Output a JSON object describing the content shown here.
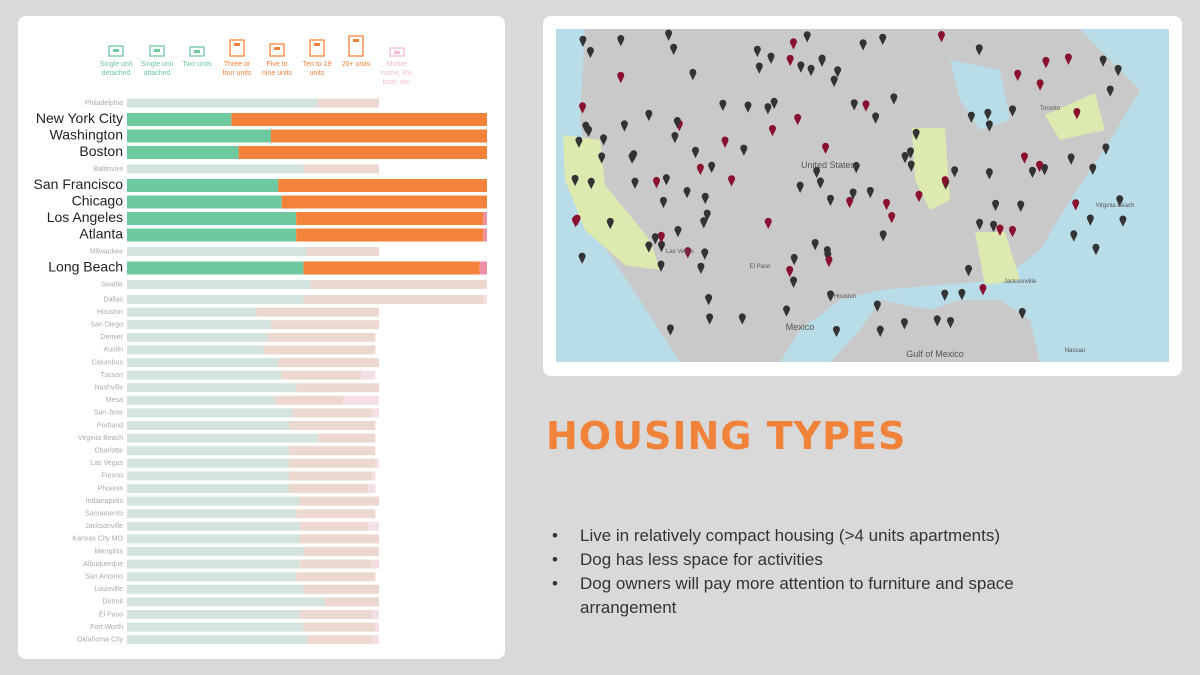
{
  "legend": [
    {
      "lines": [
        "Single unit",
        "detached"
      ],
      "group": "green"
    },
    {
      "lines": [
        "Single unit",
        "attached"
      ],
      "group": "green"
    },
    {
      "lines": [
        "Two units"
      ],
      "group": "green"
    },
    {
      "lines": [
        "Three or",
        "four units"
      ],
      "group": "orange"
    },
    {
      "lines": [
        "Five to",
        "nine units"
      ],
      "group": "orange"
    },
    {
      "lines": [
        "Ten to 19",
        "units"
      ],
      "group": "orange"
    },
    {
      "lines": [
        "20+ units"
      ],
      "group": "orange"
    },
    {
      "lines": [
        "Mobile",
        "home, RV,",
        "boat, etc."
      ],
      "group": "pink"
    }
  ],
  "colors": {
    "green": "#6fc9a0",
    "orange": "#f5823a",
    "pink": "#f08fa8",
    "green_faded": "#d3e3dd",
    "orange_faded": "#ecd8cf",
    "pink_faded": "#f4dfe5"
  },
  "cities": [
    {
      "name": "Philadelphia",
      "highlighted": false,
      "values": [
        53,
        17,
        0
      ]
    },
    {
      "name": "New York City",
      "highlighted": true,
      "values": [
        29,
        71,
        0
      ]
    },
    {
      "name": "Washington",
      "highlighted": true,
      "values": [
        40,
        60,
        0
      ]
    },
    {
      "name": "Boston",
      "highlighted": true,
      "values": [
        31,
        69,
        0
      ]
    },
    {
      "name": "Baltimore",
      "highlighted": false,
      "values": [
        49,
        21,
        0
      ]
    },
    {
      "name": "San Francisco",
      "highlighted": true,
      "values": [
        42,
        58,
        0
      ]
    },
    {
      "name": "Chicago",
      "highlighted": true,
      "values": [
        43,
        57,
        0
      ]
    },
    {
      "name": "Los Angeles",
      "highlighted": true,
      "values": [
        47,
        52,
        1
      ]
    },
    {
      "name": "Atlanta",
      "highlighted": true,
      "values": [
        47,
        52,
        1
      ]
    },
    {
      "name": "Milwaukee",
      "highlighted": false,
      "values": [
        50,
        20,
        0
      ]
    },
    {
      "name": "Long Beach",
      "highlighted": true,
      "values": [
        49,
        49,
        2
      ]
    },
    {
      "name": "Seattle",
      "highlighted": false,
      "values": [
        51,
        49,
        0
      ]
    },
    {
      "name": "Dallas",
      "highlighted": false,
      "values": [
        49,
        50,
        1
      ]
    },
    {
      "name": "Houston",
      "highlighted": false,
      "values": [
        36,
        34,
        0
      ]
    },
    {
      "name": "San Diego",
      "highlighted": false,
      "values": [
        40,
        30,
        0
      ]
    },
    {
      "name": "Denver",
      "highlighted": false,
      "values": [
        39,
        30,
        0
      ]
    },
    {
      "name": "Austin",
      "highlighted": false,
      "values": [
        38,
        31,
        0
      ]
    },
    {
      "name": "Columbus",
      "highlighted": false,
      "values": [
        42,
        28,
        0
      ]
    },
    {
      "name": "Tucson",
      "highlighted": false,
      "values": [
        43,
        22,
        4
      ]
    },
    {
      "name": "Nashville",
      "highlighted": false,
      "values": [
        47,
        23,
        0
      ]
    },
    {
      "name": "Mesa",
      "highlighted": false,
      "values": [
        41,
        19,
        10
      ]
    },
    {
      "name": "San Jose",
      "highlighted": false,
      "values": [
        46,
        22,
        2
      ]
    },
    {
      "name": "Portland",
      "highlighted": false,
      "values": [
        45,
        24,
        0
      ]
    },
    {
      "name": "Virginia Beach",
      "highlighted": false,
      "values": [
        53,
        16,
        0
      ]
    },
    {
      "name": "Charlotte",
      "highlighted": false,
      "values": [
        45,
        24,
        0
      ]
    },
    {
      "name": "Las Vegas",
      "highlighted": false,
      "values": [
        45,
        24,
        1
      ]
    },
    {
      "name": "Fresno",
      "highlighted": false,
      "values": [
        45,
        23,
        1
      ]
    },
    {
      "name": "Phoenix",
      "highlighted": false,
      "values": [
        45,
        22,
        2
      ]
    },
    {
      "name": "Indianapolis",
      "highlighted": false,
      "values": [
        48,
        22,
        0
      ]
    },
    {
      "name": "Sacramento",
      "highlighted": false,
      "values": [
        47,
        22,
        0
      ]
    },
    {
      "name": "Jacksonville",
      "highlighted": false,
      "values": [
        48,
        19,
        3
      ]
    },
    {
      "name": "Kansas City MO",
      "highlighted": false,
      "values": [
        48,
        22,
        0
      ]
    },
    {
      "name": "Memphis",
      "highlighted": false,
      "values": [
        49,
        21,
        0
      ]
    },
    {
      "name": "Albuquerque",
      "highlighted": false,
      "values": [
        48,
        20,
        2
      ]
    },
    {
      "name": "San Antonio",
      "highlighted": false,
      "values": [
        47,
        22,
        0
      ]
    },
    {
      "name": "Louisville",
      "highlighted": false,
      "values": [
        49,
        21,
        0
      ]
    },
    {
      "name": "Detroit",
      "highlighted": false,
      "values": [
        55,
        15,
        0
      ]
    },
    {
      "name": "El Paso",
      "highlighted": false,
      "values": [
        48,
        20,
        2
      ]
    },
    {
      "name": "Fort Worth",
      "highlighted": false,
      "values": [
        49,
        20,
        1
      ]
    },
    {
      "name": "Oklahoma City",
      "highlighted": false,
      "values": [
        50,
        18,
        2
      ]
    }
  ],
  "map": {
    "labels": [
      "United States",
      "Mexico",
      "Gulf of Mexico",
      "Las Vegas",
      "El Paso",
      "Houston",
      "Virginia Beach",
      "Jacksonville",
      "Toronto",
      "Nassau"
    ]
  },
  "title": "HOUSING TYPES",
  "bullets": [
    "Live in relatively compact housing (>4 units apartments)",
    "Dog has less space for activities",
    "Dog owners will pay more attention to furniture and space arrangement"
  ]
}
